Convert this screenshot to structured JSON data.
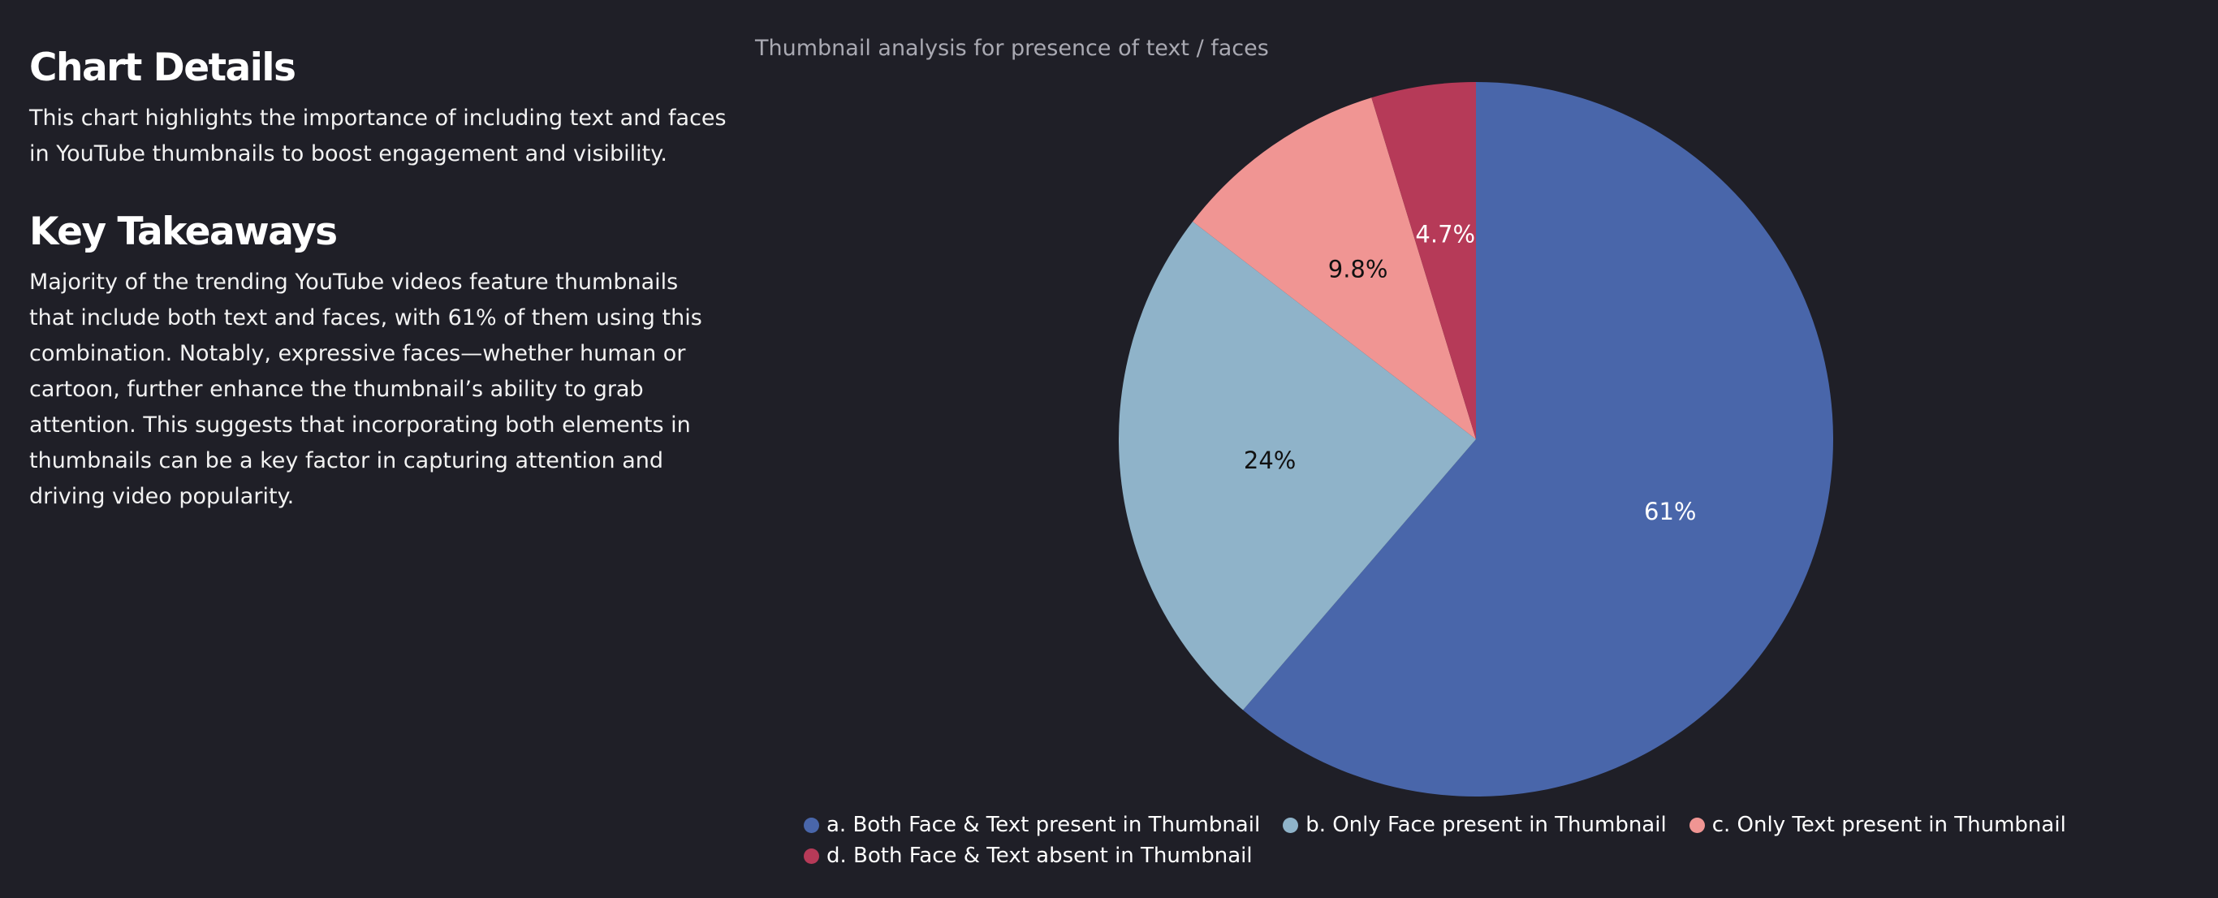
{
  "details": {
    "heading": "Chart Details",
    "body": "This chart highlights the importance of including text and faces in YouTube thumbnails to boost engagement and visibility."
  },
  "takeaways": {
    "heading": "Key Takeaways",
    "body": "Majority of the trending YouTube videos feature thumbnails that include both text and faces, with 61% of them using this combination. Notably, expressive faces—whether human or cartoon, further enhance the thumbnail’s ability to grab attention. This suggests that incorporating both elements in thumbnails can be a key factor in capturing attention and driving video popularity."
  },
  "chart_data": {
    "type": "pie",
    "title": "Thumbnail analysis for presence of text / faces",
    "categories": [
      "a. Both Face & Text present in Thumbnail",
      "b. Only Face present in Thumbnail",
      "c. Only Text present in Thumbnail",
      "d. Both Face & Text absent in Thumbnail"
    ],
    "values": [
      61,
      24,
      9.8,
      4.7
    ],
    "value_labels": [
      "61%",
      "24%",
      "9.8%",
      "4.7%"
    ],
    "colors": [
      "#4966aa",
      "#8fb3c9",
      "#f09593",
      "#b63a58"
    ],
    "label_colors": [
      "#ffffff",
      "#111111",
      "#111111",
      "#ffffff"
    ],
    "direction": "clockwise",
    "start_angle": "top",
    "legend_position": "bottom"
  }
}
